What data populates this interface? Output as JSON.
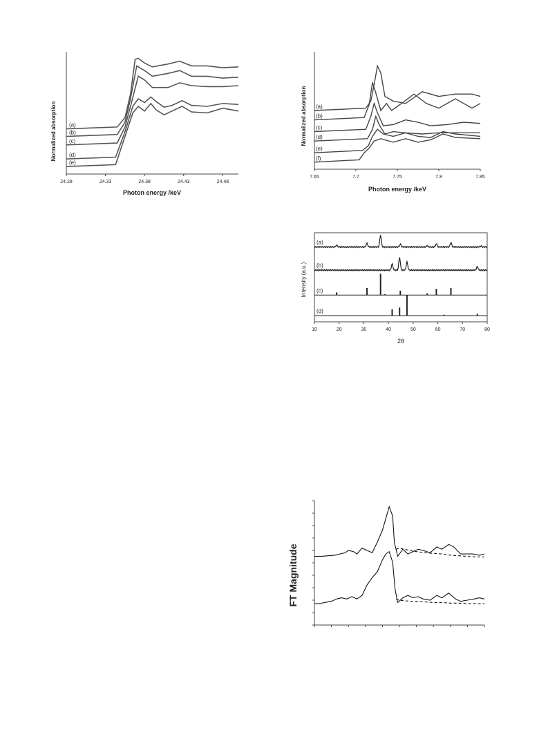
{
  "chart_data": [
    {
      "type": "line",
      "xlabel": "Photon energy /keV",
      "ylabel": "Normalized absorption",
      "xlim": [
        24.28,
        24.5
      ],
      "xticks": [
        24.28,
        24.33,
        24.38,
        24.43,
        24.48
      ],
      "xtick_labels": [
        "24.28",
        "24.33",
        "24.38",
        "24.43",
        "24.48"
      ],
      "series": [
        {
          "name": "(a)",
          "x": [
            24.28,
            24.345,
            24.355,
            24.362,
            24.368,
            24.372,
            24.38,
            24.39,
            24.41,
            24.425,
            24.44,
            24.46,
            24.48,
            24.5
          ],
          "y": [
            0.18,
            0.2,
            0.3,
            0.55,
            0.92,
            0.93,
            0.88,
            0.84,
            0.87,
            0.9,
            0.85,
            0.85,
            0.83,
            0.84
          ]
        },
        {
          "name": "(b)",
          "x": [
            24.28,
            24.345,
            24.355,
            24.362,
            24.37,
            24.38,
            24.39,
            24.41,
            24.425,
            24.44,
            24.46,
            24.48,
            24.5
          ],
          "y": [
            0.1,
            0.12,
            0.25,
            0.5,
            0.85,
            0.8,
            0.74,
            0.77,
            0.8,
            0.74,
            0.74,
            0.72,
            0.73
          ]
        },
        {
          "name": "(c)",
          "x": [
            24.28,
            24.345,
            24.355,
            24.363,
            24.372,
            24.38,
            24.39,
            24.41,
            24.425,
            24.44,
            24.46,
            24.48,
            24.5
          ],
          "y": [
            0.01,
            0.03,
            0.2,
            0.45,
            0.74,
            0.7,
            0.62,
            0.62,
            0.67,
            0.64,
            0.63,
            0.63,
            0.64
          ]
        },
        {
          "name": "(d)",
          "x": [
            24.28,
            24.343,
            24.355,
            24.365,
            24.372,
            24.38,
            24.388,
            24.395,
            24.405,
            24.415,
            24.428,
            24.44,
            24.46,
            24.48,
            24.5
          ],
          "y": [
            -0.14,
            -0.12,
            0.15,
            0.42,
            0.5,
            0.46,
            0.52,
            0.47,
            0.41,
            0.43,
            0.48,
            0.43,
            0.42,
            0.45,
            0.44
          ]
        },
        {
          "name": "(e)",
          "x": [
            24.28,
            24.343,
            24.355,
            24.365,
            24.372,
            24.38,
            24.388,
            24.395,
            24.405,
            24.415,
            24.428,
            24.44,
            24.46,
            24.48,
            24.5
          ],
          "y": [
            -0.22,
            -0.2,
            0.1,
            0.35,
            0.42,
            0.37,
            0.45,
            0.38,
            0.33,
            0.37,
            0.42,
            0.36,
            0.35,
            0.4,
            0.37
          ]
        }
      ]
    },
    {
      "type": "line",
      "xlabel": "Photon energy /keV",
      "ylabel": "Normalized absorption",
      "xlim": [
        7.65,
        7.85
      ],
      "xticks": [
        7.65,
        7.7,
        7.75,
        7.8,
        7.85
      ],
      "xtick_labels": [
        "7.65",
        "7.7",
        "7.75",
        "7.8",
        "7.85"
      ],
      "series": [
        {
          "name": "(a)",
          "x": [
            7.65,
            7.712,
            7.718,
            7.722,
            7.726,
            7.73,
            7.735,
            7.745,
            7.76,
            7.78,
            7.8,
            7.82,
            7.84,
            7.85
          ],
          "y": [
            0.5,
            0.52,
            0.58,
            0.72,
            0.88,
            0.82,
            0.62,
            0.58,
            0.56,
            0.66,
            0.62,
            0.64,
            0.64,
            0.62
          ]
        },
        {
          "name": "(b)",
          "x": [
            7.65,
            7.71,
            7.716,
            7.72,
            7.724,
            7.73,
            7.737,
            7.743,
            7.755,
            7.77,
            7.785,
            7.8,
            7.82,
            7.84,
            7.85
          ],
          "y": [
            0.42,
            0.44,
            0.55,
            0.74,
            0.65,
            0.5,
            0.56,
            0.5,
            0.56,
            0.64,
            0.56,
            0.52,
            0.6,
            0.52,
            0.56
          ]
        },
        {
          "name": "(c)",
          "x": [
            7.65,
            7.712,
            7.718,
            7.722,
            7.726,
            7.733,
            7.745,
            7.76,
            7.775,
            7.79,
            7.81,
            7.83,
            7.85
          ],
          "y": [
            0.32,
            0.34,
            0.45,
            0.56,
            0.48,
            0.37,
            0.38,
            0.42,
            0.4,
            0.37,
            0.38,
            0.4,
            0.39
          ]
        },
        {
          "name": "(d)",
          "x": [
            7.65,
            7.714,
            7.72,
            7.724,
            7.728,
            7.735,
            7.745,
            7.76,
            7.78,
            7.8,
            7.82,
            7.85
          ],
          "y": [
            0.24,
            0.26,
            0.34,
            0.45,
            0.38,
            0.3,
            0.32,
            0.31,
            0.3,
            0.31,
            0.31,
            0.31
          ]
        },
        {
          "name": "(e)",
          "x": [
            7.65,
            7.708,
            7.715,
            7.72,
            7.726,
            7.733,
            7.745,
            7.76,
            7.775,
            7.79,
            7.805,
            7.82,
            7.85
          ],
          "y": [
            0.14,
            0.16,
            0.2,
            0.28,
            0.34,
            0.3,
            0.28,
            0.31,
            0.28,
            0.27,
            0.32,
            0.3,
            0.28
          ]
        },
        {
          "name": "(f)",
          "x": [
            7.65,
            7.704,
            7.71,
            7.716,
            7.722,
            7.73,
            7.745,
            7.76,
            7.775,
            7.79,
            7.805,
            7.82,
            7.85
          ],
          "y": [
            0.06,
            0.08,
            0.14,
            0.18,
            0.24,
            0.26,
            0.23,
            0.26,
            0.23,
            0.25,
            0.3,
            0.27,
            0.26
          ]
        }
      ]
    },
    {
      "type": "line",
      "xlabel": "2θ",
      "ylabel": "Intensity (a.u.)",
      "xlim": [
        10,
        80
      ],
      "xticks": [
        10,
        20,
        30,
        40,
        50,
        60,
        70,
        80
      ],
      "xtick_labels": [
        "10",
        "20",
        "30",
        "40",
        "50",
        "60",
        "70",
        "80"
      ],
      "series": [
        {
          "name": "(a)",
          "baseline": 0.84,
          "peaks": [
            [
              19,
              0.02
            ],
            [
              31.3,
              0.04
            ],
            [
              36.8,
              0.13
            ],
            [
              44.8,
              0.03
            ],
            [
              55.7,
              0.015
            ],
            [
              59.4,
              0.035
            ],
            [
              65.3,
              0.05
            ],
            [
              77.5,
              0.01
            ]
          ]
        },
        {
          "name": "(b)",
          "baseline": 0.58,
          "peaks": [
            [
              41.5,
              0.07
            ],
            [
              44.5,
              0.14
            ],
            [
              47.5,
              0.09
            ],
            [
              76,
              0.04
            ]
          ]
        },
        {
          "name": "(c)",
          "baseline": 0.3,
          "sticks": [
            [
              19,
              0.03
            ],
            [
              31.3,
              0.08
            ],
            [
              36.8,
              0.24
            ],
            [
              38.5,
              0.01
            ],
            [
              44.8,
              0.05
            ],
            [
              55.7,
              0.02
            ],
            [
              59.4,
              0.07
            ],
            [
              65.3,
              0.08
            ]
          ]
        },
        {
          "name": "(d)",
          "baseline": 0.07,
          "sticks": [
            [
              41.5,
              0.07
            ],
            [
              44.5,
              0.09
            ],
            [
              47.5,
              0.23
            ],
            [
              62.5,
              0.01
            ],
            [
              76,
              0.02
            ]
          ]
        }
      ]
    },
    {
      "type": "line",
      "ylabel": "FT Magnitude",
      "xlim": [
        0,
        10
      ],
      "series": [
        {
          "style": "solid",
          "x": [
            0,
            0.4,
            0.8,
            1.2,
            1.5,
            1.8,
            2,
            2.3,
            2.5,
            2.8,
            3.1,
            3.4,
            3.7,
            4.0,
            4.2,
            4.4,
            4.6,
            4.7,
            4.9,
            5.2,
            5.5,
            5.8,
            6.1,
            6.4,
            6.8,
            7.2,
            7.5,
            7.9,
            8.2,
            8.6,
            8.9,
            9.3,
            9.7,
            10
          ],
          "y": [
            0.58,
            0.58,
            0.585,
            0.59,
            0.6,
            0.61,
            0.63,
            0.62,
            0.6,
            0.65,
            0.63,
            0.61,
            0.7,
            0.8,
            0.9,
            1.0,
            0.92,
            0.7,
            0.58,
            0.64,
            0.6,
            0.62,
            0.64,
            0.63,
            0.61,
            0.66,
            0.64,
            0.68,
            0.66,
            0.6,
            0.6,
            0.6,
            0.59,
            0.6
          ]
        },
        {
          "style": "dashed",
          "x": [
            4.8,
            5.0,
            5.3,
            5.6,
            6.0,
            6.5,
            7.0,
            7.5,
            8.0,
            8.5,
            9.0,
            9.5,
            10
          ],
          "y": [
            0.64,
            0.65,
            0.64,
            0.63,
            0.62,
            0.61,
            0.605,
            0.6,
            0.59,
            0.585,
            0.58,
            0.575,
            0.575
          ]
        },
        {
          "style": "solid",
          "x": [
            0,
            0.3,
            0.6,
            1,
            1.3,
            1.6,
            1.9,
            2.2,
            2.5,
            2.8,
            3.1,
            3.4,
            3.7,
            4.0,
            4.2,
            4.4,
            4.6,
            4.75,
            4.9,
            5.2,
            5.5,
            5.8,
            6.1,
            6.4,
            6.8,
            7.2,
            7.5,
            7.9,
            8.3,
            8.6,
            9.0,
            9.4,
            9.7,
            10
          ],
          "y": [
            0.18,
            0.18,
            0.19,
            0.2,
            0.22,
            0.23,
            0.22,
            0.24,
            0.22,
            0.25,
            0.34,
            0.4,
            0.45,
            0.55,
            0.6,
            0.62,
            0.53,
            0.3,
            0.19,
            0.23,
            0.25,
            0.23,
            0.24,
            0.22,
            0.21,
            0.25,
            0.23,
            0.27,
            0.22,
            0.2,
            0.21,
            0.22,
            0.23,
            0.22
          ]
        },
        {
          "style": "dashed",
          "x": [
            4.8,
            5.0,
            5.3,
            5.7,
            6.0,
            6.5,
            7.0,
            7.5,
            8.0,
            8.5,
            9.0,
            9.5,
            10
          ],
          "y": [
            0.22,
            0.21,
            0.205,
            0.2,
            0.2,
            0.195,
            0.19,
            0.19,
            0.185,
            0.185,
            0.18,
            0.18,
            0.18
          ]
        }
      ]
    }
  ]
}
